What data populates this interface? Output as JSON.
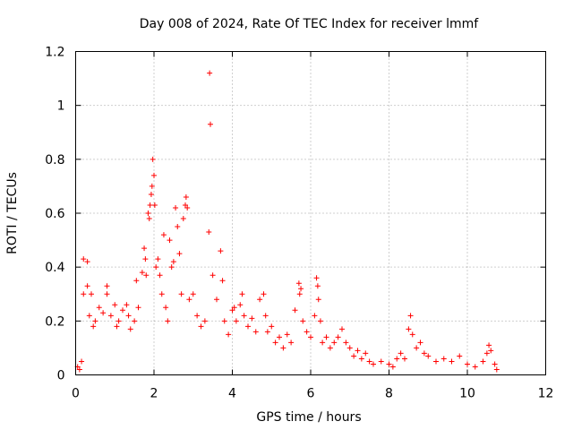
{
  "chart_data": {
    "type": "scatter",
    "title": "Day 008 of 2024, Rate Of TEC Index for receiver lmmf",
    "xlabel": "GPS time / hours",
    "ylabel": "ROTI / TECUs",
    "xlim": [
      0,
      12
    ],
    "ylim": [
      0,
      1.2
    ],
    "xticks": [
      "0",
      "2",
      "4",
      "6",
      "8",
      "10",
      "12"
    ],
    "yticks": [
      "0",
      "0.2",
      "0.4",
      "0.6",
      "0.8",
      "1",
      "1.2"
    ],
    "grid": true,
    "marker": "plus",
    "color": "#ff0000",
    "series": [
      {
        "name": "ROTI",
        "points": [
          [
            0.05,
            0.03
          ],
          [
            0.1,
            0.02
          ],
          [
            0.15,
            0.05
          ],
          [
            0.2,
            0.43
          ],
          [
            0.3,
            0.42
          ],
          [
            0.2,
            0.3
          ],
          [
            0.3,
            0.33
          ],
          [
            0.35,
            0.22
          ],
          [
            0.4,
            0.3
          ],
          [
            0.45,
            0.18
          ],
          [
            0.5,
            0.2
          ],
          [
            0.6,
            0.25
          ],
          [
            0.7,
            0.23
          ],
          [
            0.8,
            0.33
          ],
          [
            0.8,
            0.3
          ],
          [
            0.9,
            0.22
          ],
          [
            1.0,
            0.26
          ],
          [
            1.05,
            0.18
          ],
          [
            1.1,
            0.2
          ],
          [
            1.2,
            0.24
          ],
          [
            1.3,
            0.26
          ],
          [
            1.35,
            0.22
          ],
          [
            1.4,
            0.17
          ],
          [
            1.5,
            0.2
          ],
          [
            1.55,
            0.35
          ],
          [
            1.6,
            0.25
          ],
          [
            1.7,
            0.38
          ],
          [
            1.75,
            0.47
          ],
          [
            1.78,
            0.43
          ],
          [
            1.8,
            0.37
          ],
          [
            1.85,
            0.6
          ],
          [
            1.88,
            0.58
          ],
          [
            1.9,
            0.63
          ],
          [
            1.93,
            0.67
          ],
          [
            1.95,
            0.7
          ],
          [
            1.97,
            0.8
          ],
          [
            2.0,
            0.74
          ],
          [
            2.02,
            0.63
          ],
          [
            2.05,
            0.4
          ],
          [
            2.1,
            0.43
          ],
          [
            2.15,
            0.37
          ],
          [
            2.2,
            0.3
          ],
          [
            2.25,
            0.52
          ],
          [
            2.3,
            0.25
          ],
          [
            2.35,
            0.2
          ],
          [
            2.4,
            0.5
          ],
          [
            2.45,
            0.4
          ],
          [
            2.5,
            0.42
          ],
          [
            2.55,
            0.62
          ],
          [
            2.6,
            0.55
          ],
          [
            2.65,
            0.45
          ],
          [
            2.7,
            0.3
          ],
          [
            2.75,
            0.58
          ],
          [
            2.8,
            0.63
          ],
          [
            2.82,
            0.66
          ],
          [
            2.85,
            0.62
          ],
          [
            2.9,
            0.28
          ],
          [
            3.0,
            0.3
          ],
          [
            3.1,
            0.22
          ],
          [
            3.2,
            0.18
          ],
          [
            3.3,
            0.2
          ],
          [
            3.4,
            0.53
          ],
          [
            3.42,
            1.12
          ],
          [
            3.44,
            0.93
          ],
          [
            3.5,
            0.37
          ],
          [
            3.6,
            0.28
          ],
          [
            3.7,
            0.46
          ],
          [
            3.75,
            0.35
          ],
          [
            3.8,
            0.2
          ],
          [
            3.9,
            0.15
          ],
          [
            4.0,
            0.24
          ],
          [
            4.05,
            0.25
          ],
          [
            4.1,
            0.2
          ],
          [
            4.2,
            0.26
          ],
          [
            4.25,
            0.3
          ],
          [
            4.3,
            0.22
          ],
          [
            4.4,
            0.18
          ],
          [
            4.5,
            0.21
          ],
          [
            4.6,
            0.16
          ],
          [
            4.7,
            0.28
          ],
          [
            4.8,
            0.3
          ],
          [
            4.85,
            0.22
          ],
          [
            4.9,
            0.16
          ],
          [
            5.0,
            0.18
          ],
          [
            5.1,
            0.12
          ],
          [
            5.2,
            0.14
          ],
          [
            5.3,
            0.1
          ],
          [
            5.4,
            0.15
          ],
          [
            5.5,
            0.12
          ],
          [
            5.6,
            0.24
          ],
          [
            5.7,
            0.34
          ],
          [
            5.72,
            0.3
          ],
          [
            5.75,
            0.32
          ],
          [
            5.8,
            0.2
          ],
          [
            5.9,
            0.16
          ],
          [
            6.0,
            0.14
          ],
          [
            6.1,
            0.22
          ],
          [
            6.15,
            0.36
          ],
          [
            6.18,
            0.33
          ],
          [
            6.2,
            0.28
          ],
          [
            6.25,
            0.2
          ],
          [
            6.3,
            0.12
          ],
          [
            6.4,
            0.14
          ],
          [
            6.5,
            0.1
          ],
          [
            6.6,
            0.12
          ],
          [
            6.7,
            0.14
          ],
          [
            6.8,
            0.17
          ],
          [
            6.9,
            0.12
          ],
          [
            7.0,
            0.1
          ],
          [
            7.1,
            0.07
          ],
          [
            7.2,
            0.09
          ],
          [
            7.3,
            0.06
          ],
          [
            7.4,
            0.08
          ],
          [
            7.5,
            0.05
          ],
          [
            7.6,
            0.04
          ],
          [
            7.8,
            0.05
          ],
          [
            8.0,
            0.04
          ],
          [
            8.1,
            0.03
          ],
          [
            8.2,
            0.06
          ],
          [
            8.3,
            0.08
          ],
          [
            8.4,
            0.06
          ],
          [
            8.5,
            0.17
          ],
          [
            8.55,
            0.22
          ],
          [
            8.6,
            0.15
          ],
          [
            8.7,
            0.1
          ],
          [
            8.8,
            0.12
          ],
          [
            8.9,
            0.08
          ],
          [
            9.0,
            0.07
          ],
          [
            9.2,
            0.05
          ],
          [
            9.4,
            0.06
          ],
          [
            9.6,
            0.05
          ],
          [
            9.8,
            0.07
          ],
          [
            10.0,
            0.04
          ],
          [
            10.2,
            0.03
          ],
          [
            10.4,
            0.05
          ],
          [
            10.5,
            0.08
          ],
          [
            10.55,
            0.11
          ],
          [
            10.6,
            0.09
          ],
          [
            10.7,
            0.04
          ],
          [
            10.75,
            0.02
          ]
        ]
      }
    ]
  }
}
